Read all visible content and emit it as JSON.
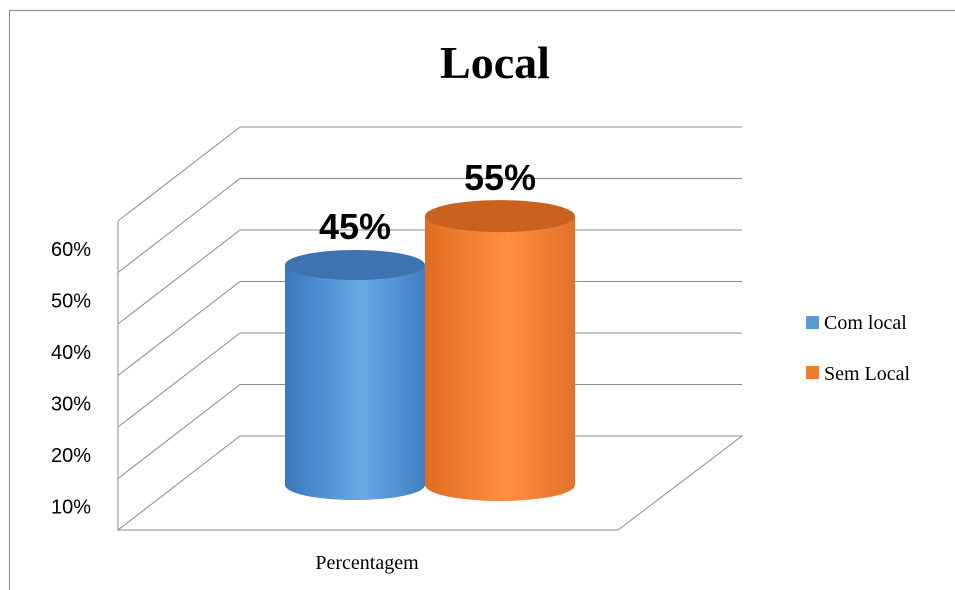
{
  "chart_data": {
    "type": "bar",
    "title": "Local",
    "categories": [
      "Percentagem"
    ],
    "series": [
      {
        "name": "Com local",
        "values": [
          0.45
        ],
        "label": "45%",
        "color": "#5b9bd5"
      },
      {
        "name": "Sem Local",
        "values": [
          0.55
        ],
        "label": "55%",
        "color": "#ed7d31"
      }
    ],
    "y_ticks": [
      "10%",
      "20%",
      "30%",
      "40%",
      "50%",
      "60%"
    ],
    "ylim": [
      0,
      0.6
    ],
    "grid": true,
    "style": "3d-cylinder",
    "legend_position": "right"
  }
}
